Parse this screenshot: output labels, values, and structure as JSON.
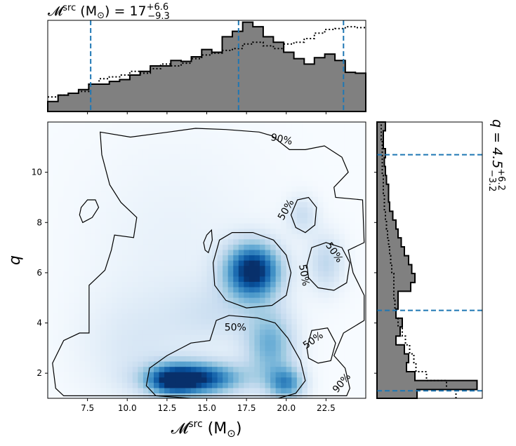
{
  "chart_data": {
    "type": "heatmap",
    "title_top": {
      "prefix": "𝓜",
      "sup": "src",
      "unit": " (M",
      "sun": "⊙",
      "close": ")",
      "eq": " = 17",
      "plus": "+6.6",
      "minus": "−9.3"
    },
    "title_right": {
      "prefix": "q = 4.5",
      "plus": "+6.2",
      "minus": "−3.2"
    },
    "xlabel": {
      "prefix": "𝓜",
      "sup": "src",
      "unit": " (M",
      "sun": "⊙",
      "close": ")"
    },
    "ylabel": "q",
    "xlim": [
      5.0,
      25.0
    ],
    "ylim": [
      1.0,
      12.0
    ],
    "xticks": [
      7.5,
      10.0,
      12.5,
      15.0,
      17.5,
      20.0,
      22.5
    ],
    "xtick_labels": [
      "7.5",
      "10.0",
      "12.5",
      "15.0",
      "17.5",
      "20.0",
      "22.5"
    ],
    "yticks": [
      2,
      4,
      6,
      8,
      10
    ],
    "ytick_labels": [
      "2",
      "4",
      "6",
      "8",
      "10"
    ],
    "colormap": "Blues",
    "density_blobs": [
      {
        "x": 17.9,
        "y": 6.1,
        "sx": 1.2,
        "sy": 0.75,
        "w": 1.0
      },
      {
        "x": 14.3,
        "y": 1.8,
        "sx": 2.0,
        "sy": 0.45,
        "w": 0.9
      },
      {
        "x": 12.8,
        "y": 1.7,
        "sx": 1.0,
        "sy": 0.4,
        "w": 0.45
      },
      {
        "x": 19.0,
        "y": 3.1,
        "sx": 1.1,
        "sy": 1.0,
        "w": 0.45
      },
      {
        "x": 20.0,
        "y": 1.6,
        "sx": 0.8,
        "sy": 0.45,
        "w": 0.55
      },
      {
        "x": 22.5,
        "y": 6.4,
        "sx": 0.8,
        "sy": 0.8,
        "w": 0.25
      },
      {
        "x": 21.0,
        "y": 8.3,
        "sx": 0.7,
        "sy": 0.55,
        "w": 0.2
      },
      {
        "x": 16.0,
        "y": 4.4,
        "sx": 2.2,
        "sy": 0.9,
        "w": 0.15
      },
      {
        "x": 10.5,
        "y": 3.0,
        "sx": 2.5,
        "sy": 1.5,
        "w": 0.12
      },
      {
        "x": 13.0,
        "y": 7.0,
        "sx": 4.0,
        "sy": 3.0,
        "w": 0.07
      }
    ],
    "contour_labels": [
      {
        "text": "90%",
        "x": 19.7,
        "y": 11.3,
        "rot": 12
      },
      {
        "text": "50%",
        "x": 20.0,
        "y": 8.5,
        "rot": -60
      },
      {
        "text": "50%",
        "x": 23.0,
        "y": 6.8,
        "rot": 55
      },
      {
        "text": "50%",
        "x": 21.1,
        "y": 5.9,
        "rot": 80
      },
      {
        "text": "50%",
        "x": 16.8,
        "y": 3.8,
        "rot": 0
      },
      {
        "text": "50%",
        "x": 21.7,
        "y": 3.3,
        "rot": -35
      },
      {
        "text": "90%",
        "x": 23.5,
        "y": 1.6,
        "rot": -50
      }
    ],
    "contour90_outer": [
      [
        8.3,
        11.6
      ],
      [
        10.2,
        11.4
      ],
      [
        12.6,
        11.6
      ],
      [
        14.3,
        11.75
      ],
      [
        16.2,
        11.7
      ],
      [
        18.3,
        11.6
      ],
      [
        19.1,
        11.45
      ],
      [
        20.2,
        10.9
      ],
      [
        21.2,
        10.9
      ],
      [
        22.4,
        11.05
      ],
      [
        23.5,
        10.6
      ],
      [
        23.9,
        10.0
      ],
      [
        23.0,
        9.4
      ],
      [
        23.1,
        9.0
      ],
      [
        24.8,
        8.9
      ],
      [
        24.9,
        7.2
      ],
      [
        23.9,
        6.9
      ],
      [
        24.2,
        6.0
      ],
      [
        24.9,
        5.1
      ],
      [
        24.9,
        4.1
      ],
      [
        23.6,
        3.6
      ],
      [
        23.0,
        2.7
      ],
      [
        23.7,
        2.2
      ],
      [
        24.0,
        1.4
      ],
      [
        23.8,
        1.1
      ],
      [
        6.0,
        1.1
      ],
      [
        5.5,
        1.4
      ],
      [
        5.3,
        2.4
      ],
      [
        6.0,
        3.3
      ],
      [
        7.0,
        3.6
      ],
      [
        7.6,
        3.6
      ],
      [
        7.6,
        5.5
      ],
      [
        8.6,
        6.1
      ],
      [
        9.0,
        6.9
      ],
      [
        9.2,
        7.5
      ],
      [
        10.4,
        7.4
      ],
      [
        10.6,
        8.2
      ],
      [
        9.6,
        8.8
      ],
      [
        8.9,
        9.5
      ],
      [
        8.4,
        10.7
      ]
    ],
    "contour90_islands": [
      [
        [
          7.2,
          8.0
        ],
        [
          7.8,
          8.2
        ],
        [
          8.2,
          8.6
        ],
        [
          8.0,
          8.9
        ],
        [
          7.5,
          8.9
        ],
        [
          7.1,
          8.6
        ],
        [
          7.0,
          8.3
        ]
      ],
      [
        [
          15.0,
          7.5
        ],
        [
          15.3,
          7.7
        ],
        [
          15.35,
          7.3
        ],
        [
          15.1,
          6.8
        ],
        [
          14.9,
          6.9
        ],
        [
          14.8,
          7.2
        ]
      ]
    ],
    "contour50": [
      [
        [
          15.4,
          6.4
        ],
        [
          15.8,
          7.3
        ],
        [
          16.6,
          7.6
        ],
        [
          17.9,
          7.6
        ],
        [
          19.2,
          7.3
        ],
        [
          20.0,
          6.7
        ],
        [
          20.3,
          6.0
        ],
        [
          20.0,
          5.1
        ],
        [
          19.1,
          4.7
        ],
        [
          17.5,
          4.6
        ],
        [
          16.2,
          4.9
        ],
        [
          15.5,
          5.5
        ]
      ],
      [
        [
          20.3,
          8.3
        ],
        [
          20.7,
          8.9
        ],
        [
          21.4,
          9.0
        ],
        [
          21.9,
          8.6
        ],
        [
          21.8,
          7.9
        ],
        [
          21.2,
          7.6
        ],
        [
          20.6,
          7.8
        ]
      ],
      [
        [
          21.3,
          6.3
        ],
        [
          21.6,
          7.0
        ],
        [
          22.5,
          7.2
        ],
        [
          23.5,
          7.0
        ],
        [
          24.0,
          6.4
        ],
        [
          23.8,
          5.6
        ],
        [
          23.0,
          5.3
        ],
        [
          22.0,
          5.4
        ],
        [
          21.4,
          5.8
        ]
      ],
      [
        [
          21.3,
          3.0
        ],
        [
          21.6,
          3.7
        ],
        [
          22.6,
          3.8
        ],
        [
          23.1,
          3.2
        ],
        [
          22.8,
          2.5
        ],
        [
          22.0,
          2.4
        ],
        [
          21.4,
          2.6
        ]
      ],
      [
        [
          11.4,
          2.2
        ],
        [
          12.5,
          2.7
        ],
        [
          14.0,
          3.2
        ],
        [
          15.2,
          3.3
        ],
        [
          15.6,
          4.1
        ],
        [
          16.4,
          4.3
        ],
        [
          18.2,
          4.2
        ],
        [
          19.3,
          4.0
        ],
        [
          20.1,
          3.4
        ],
        [
          20.9,
          2.5
        ],
        [
          21.2,
          1.7
        ],
        [
          20.6,
          1.2
        ],
        [
          19.5,
          1.0
        ],
        [
          14.0,
          1.0
        ],
        [
          11.8,
          1.1
        ],
        [
          11.2,
          1.5
        ]
      ]
    ],
    "top_hist": {
      "bins_x": [
        5.0,
        5.65,
        6.29,
        6.94,
        7.58,
        8.23,
        8.87,
        9.52,
        10.16,
        10.81,
        11.45,
        12.1,
        12.74,
        13.39,
        14.03,
        14.68,
        15.32,
        15.97,
        16.61,
        17.26,
        17.9,
        18.55,
        19.19,
        19.84,
        20.48,
        21.13,
        21.77,
        22.42,
        23.06,
        23.71,
        24.35,
        25.0
      ],
      "filled": [
        0.11,
        0.18,
        0.2,
        0.24,
        0.3,
        0.3,
        0.33,
        0.35,
        0.4,
        0.44,
        0.5,
        0.5,
        0.56,
        0.55,
        0.6,
        0.68,
        0.65,
        0.82,
        0.88,
        0.98,
        0.93,
        0.82,
        0.76,
        0.65,
        0.58,
        0.52,
        0.59,
        0.63,
        0.56,
        0.43,
        0.42
      ],
      "dotted": [
        0.16,
        0.18,
        0.2,
        0.22,
        0.3,
        0.36,
        0.38,
        0.4,
        0.44,
        0.42,
        0.47,
        0.52,
        0.5,
        0.53,
        0.58,
        0.62,
        0.64,
        0.67,
        0.69,
        0.74,
        0.76,
        0.72,
        0.69,
        0.74,
        0.76,
        0.8,
        0.86,
        0.9,
        0.91,
        0.93,
        0.92
      ],
      "vlines": [
        7.7,
        17.0,
        23.6
      ]
    },
    "right_hist": {
      "bins_y": [
        1.0,
        1.35,
        1.71,
        2.06,
        2.42,
        2.77,
        3.13,
        3.48,
        3.84,
        4.19,
        4.55,
        4.9,
        5.26,
        5.61,
        5.97,
        6.32,
        6.68,
        7.03,
        7.39,
        7.74,
        8.1,
        8.45,
        8.81,
        9.16,
        9.52,
        9.87,
        10.23,
        10.58,
        10.94,
        11.29,
        11.65,
        12.0
      ],
      "filled": [
        0.38,
        0.95,
        0.36,
        0.28,
        0.3,
        0.26,
        0.18,
        0.22,
        0.24,
        0.18,
        0.2,
        0.2,
        0.32,
        0.36,
        0.33,
        0.3,
        0.26,
        0.23,
        0.2,
        0.18,
        0.15,
        0.12,
        0.11,
        0.11,
        0.09,
        0.08,
        0.07,
        0.08,
        0.06,
        0.06,
        0.08
      ],
      "dotted": [
        0.75,
        0.66,
        0.47,
        0.37,
        0.35,
        0.31,
        0.27,
        0.24,
        0.2,
        0.18,
        0.17,
        0.16,
        0.16,
        0.16,
        0.14,
        0.13,
        0.12,
        0.11,
        0.1,
        0.09,
        0.08,
        0.07,
        0.07,
        0.06,
        0.06,
        0.05,
        0.05,
        0.05,
        0.05,
        0.04,
        0.04
      ],
      "hlines": [
        1.3,
        4.5,
        10.7
      ]
    },
    "colors": {
      "hist_fill": "#808080",
      "quantile_line": "#1f77b4",
      "contour": "#000000"
    }
  }
}
